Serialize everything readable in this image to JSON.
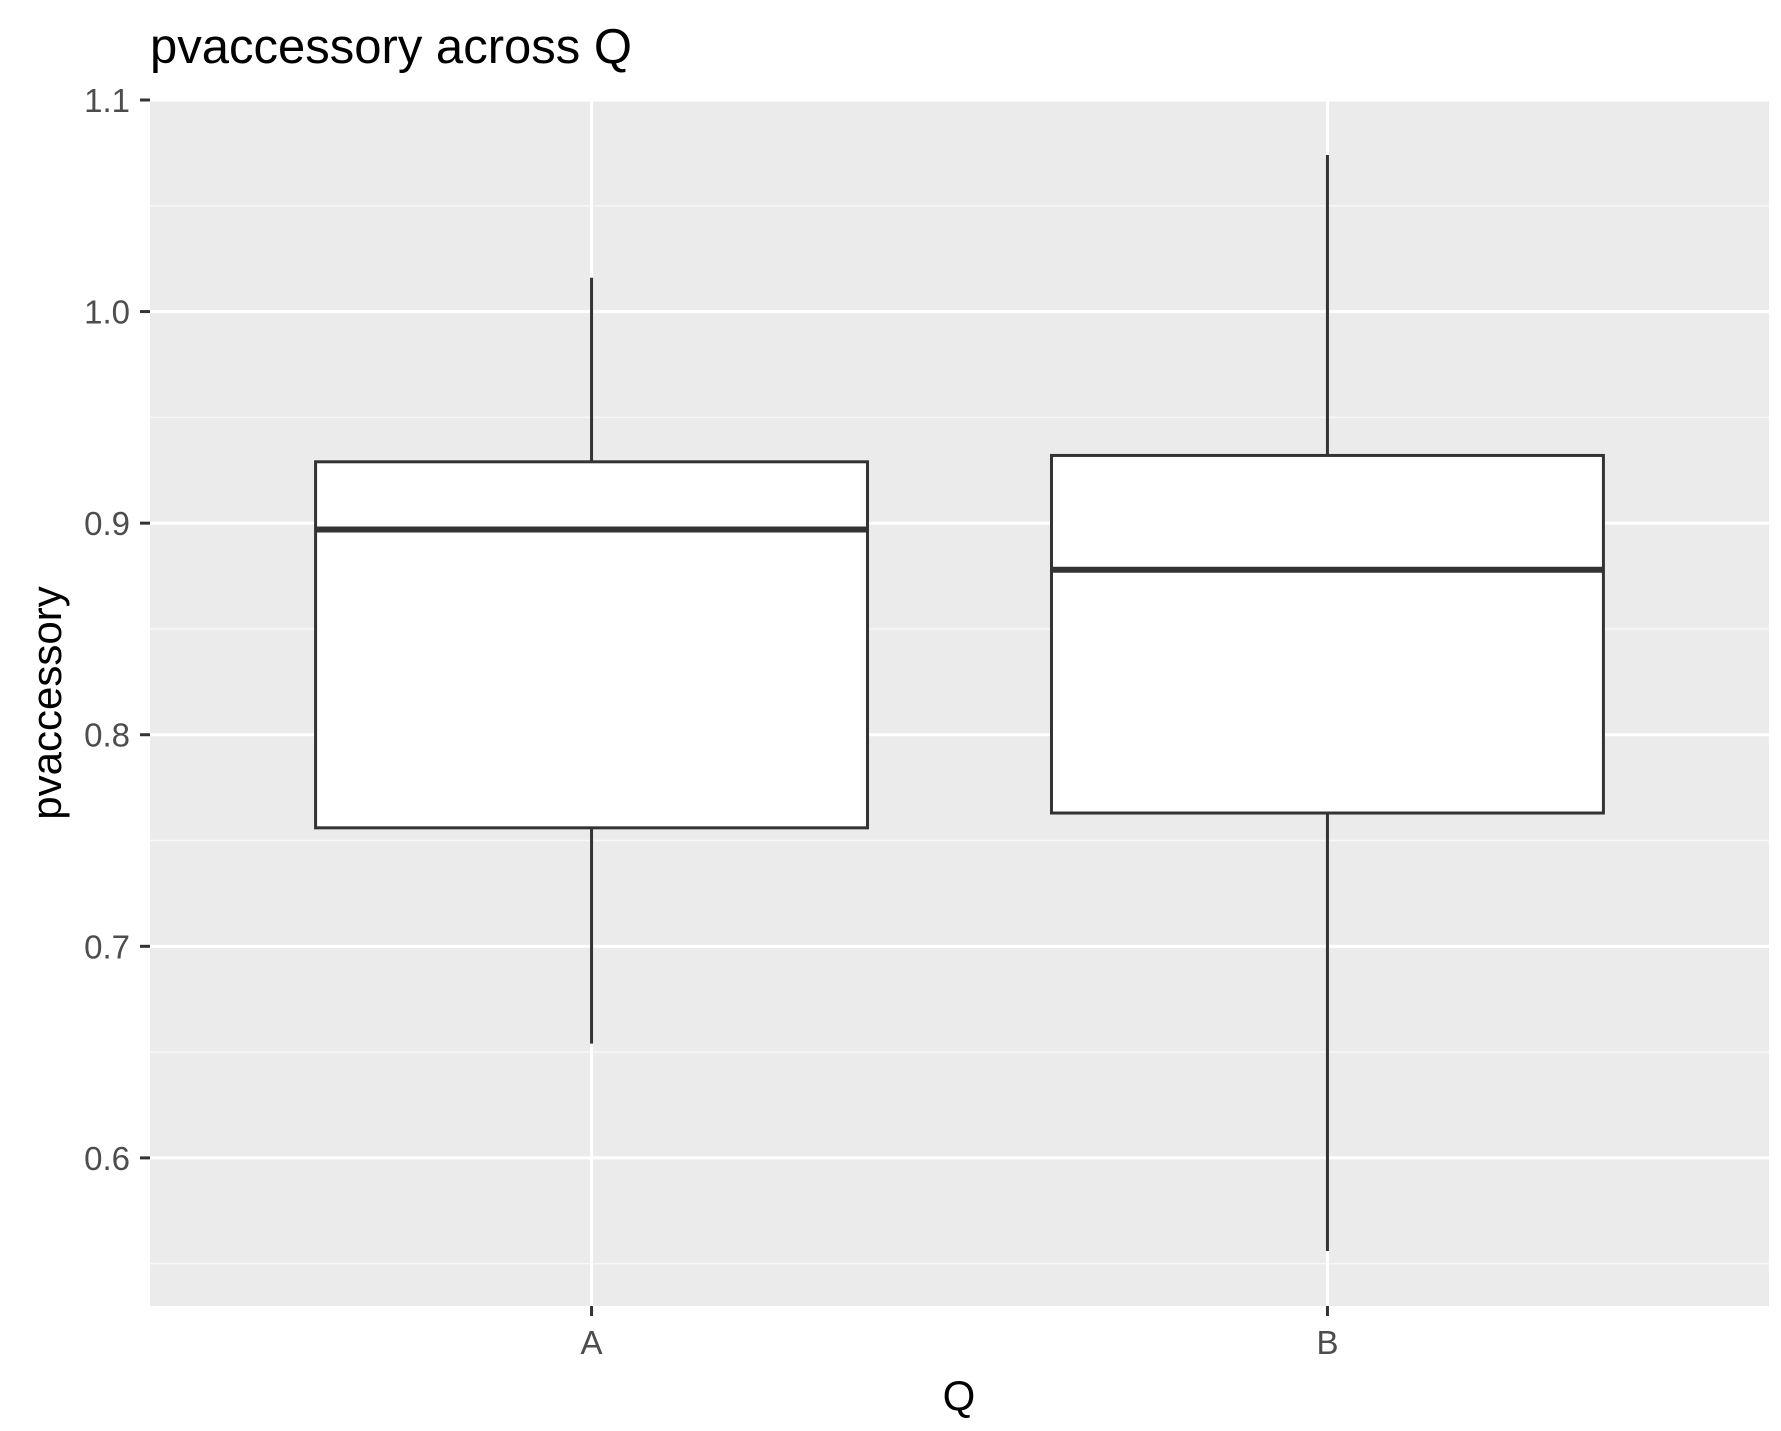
{
  "chart_data": {
    "type": "boxplot",
    "title": "pvaccessory across Q",
    "xlabel": "Q",
    "ylabel": "pvaccessory",
    "ylim": [
      0.53,
      1.1
    ],
    "y_ticks": [
      0.6,
      0.7,
      0.8,
      0.9,
      1.0,
      1.1
    ],
    "y_tick_labels": [
      "0.6",
      "0.7",
      "0.8",
      "0.9",
      "1.0",
      "1.1"
    ],
    "categories": [
      "A",
      "B"
    ],
    "boxes": [
      {
        "category": "A",
        "min": 0.654,
        "q1": 0.756,
        "median": 0.897,
        "q3": 0.929,
        "max": 1.016
      },
      {
        "category": "B",
        "min": 0.556,
        "q1": 0.763,
        "median": 0.878,
        "q3": 0.932,
        "max": 1.074
      }
    ],
    "grid": true,
    "colors": {
      "panel_background": "#ebebeb",
      "grid_major": "#ffffff",
      "grid_minor": "#f7f7f7",
      "box_fill": "#ffffff",
      "box_line": "#333333",
      "tick": "#333333"
    }
  }
}
